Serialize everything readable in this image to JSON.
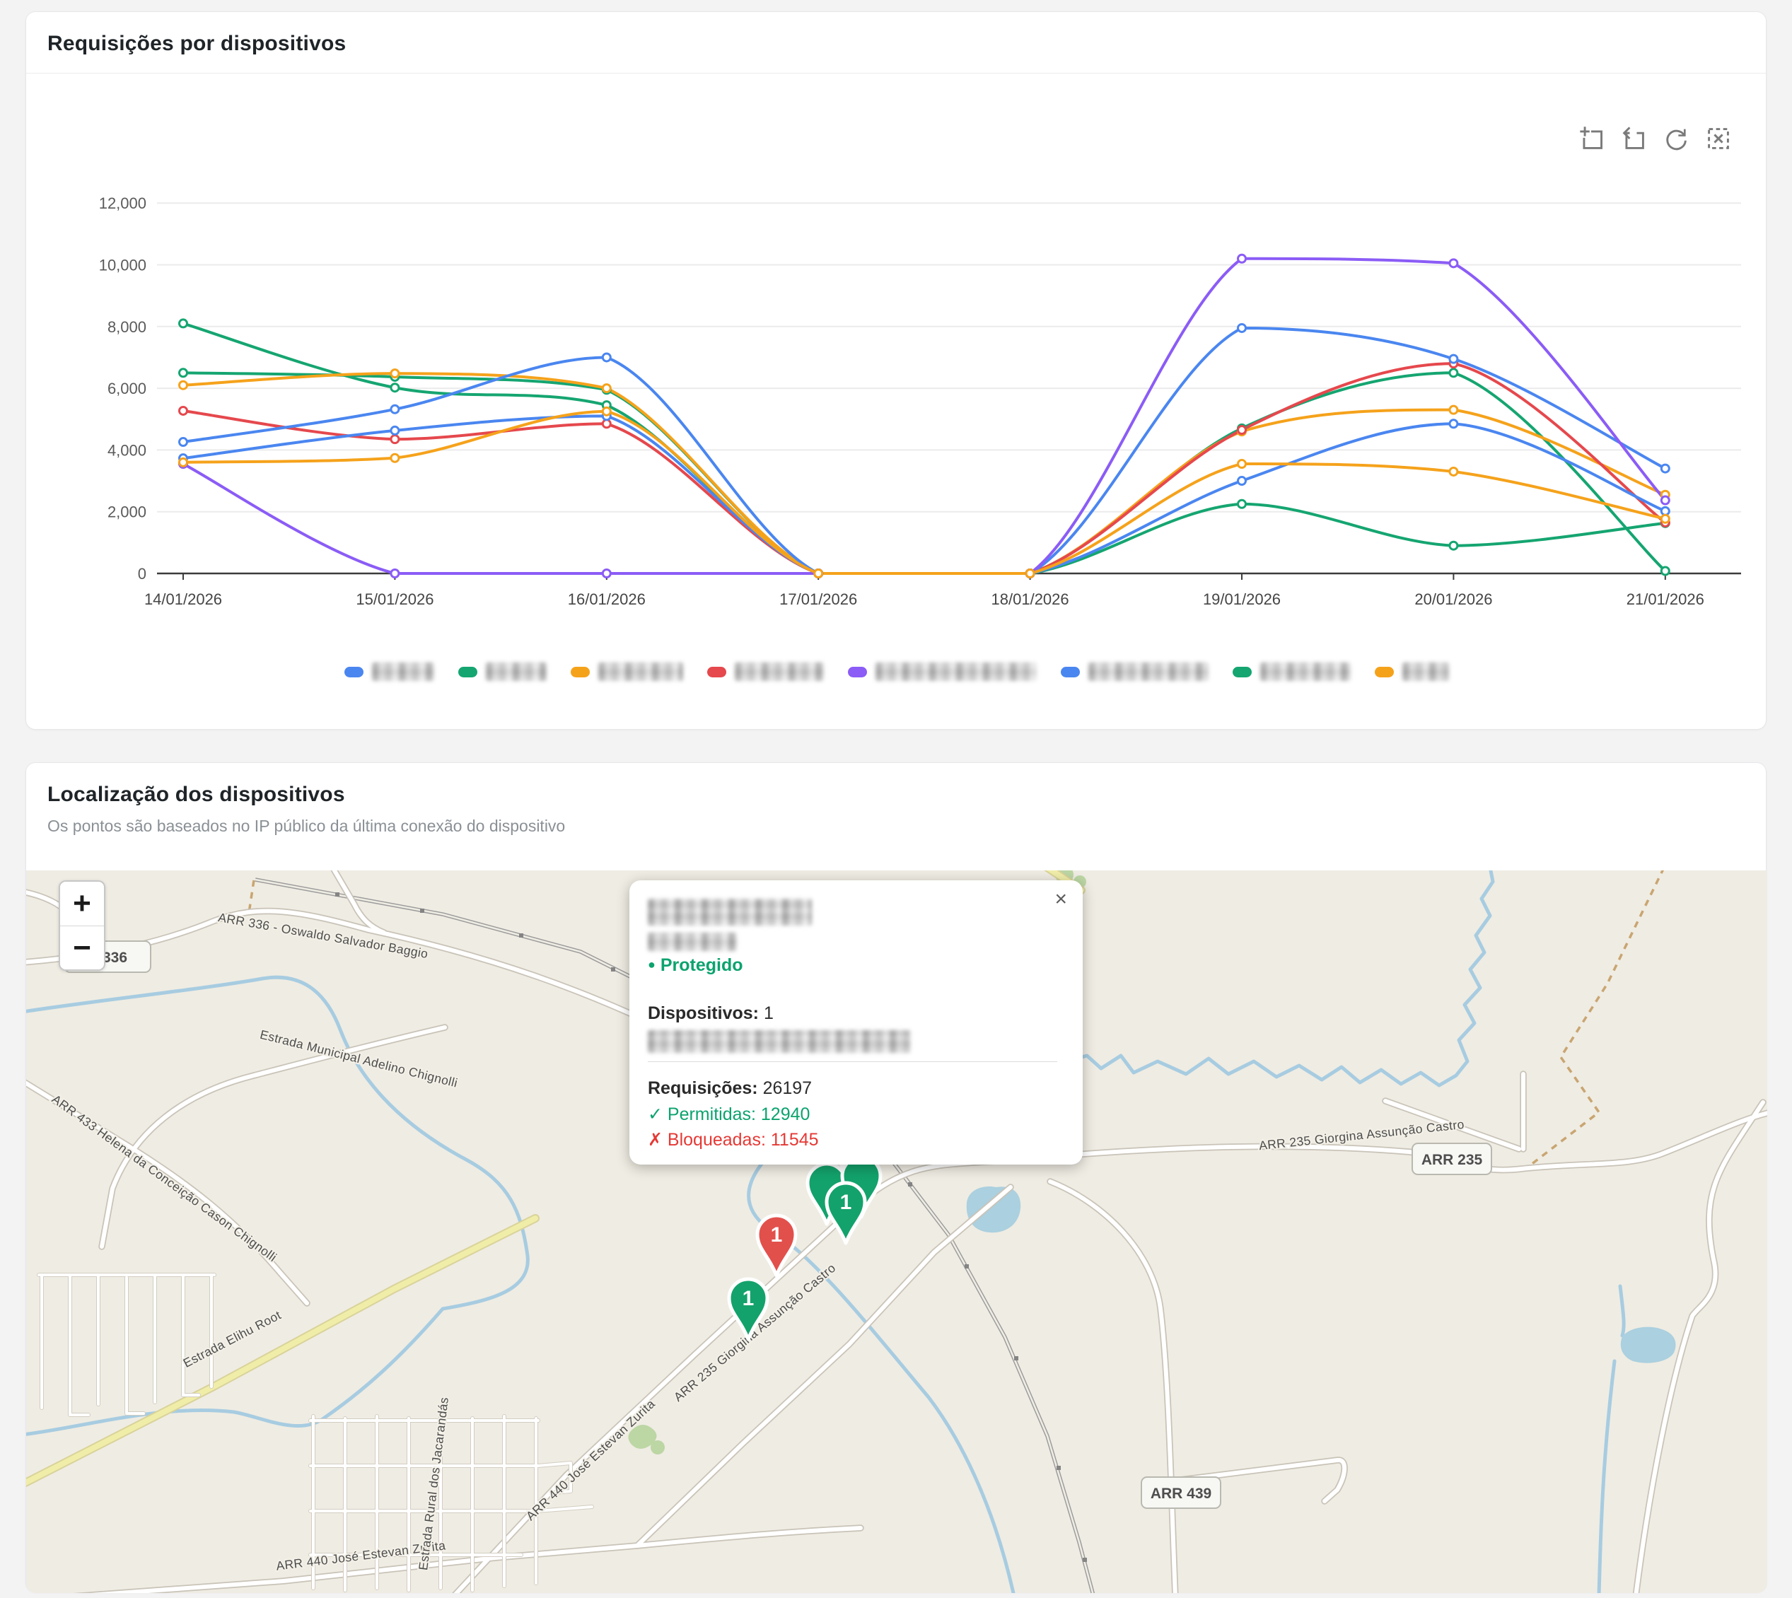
{
  "requests_card": {
    "title": "Requisições por dispositivos",
    "toolbar": [
      {
        "name": "area-zoom-icon"
      },
      {
        "name": "zoom-reset-icon"
      },
      {
        "name": "restore-icon"
      },
      {
        "name": "clear-selection-icon"
      }
    ],
    "legend": {
      "redacted": true,
      "items": [
        {
          "color": "#4a86f0",
          "name_redacted_width": 88
        },
        {
          "color": "#15a571",
          "name_redacted_width": 86
        },
        {
          "color": "#f5a21b",
          "name_redacted_width": 120
        },
        {
          "color": "#e5484d",
          "name_redacted_width": 126
        },
        {
          "color": "#8b5cf6",
          "name_redacted_width": 228
        },
        {
          "color": "#4a86f0",
          "name_redacted_width": 170
        },
        {
          "color": "#15a571",
          "name_redacted_width": 128
        },
        {
          "color": "#f5a21b",
          "name_redacted_width": 66
        }
      ]
    }
  },
  "chart_data": {
    "type": "line",
    "title": "Requisições por dispositivos",
    "smooth": true,
    "grid": true,
    "legend_position": "bottom",
    "x": [
      "14/01/2026",
      "15/01/2026",
      "16/01/2026",
      "17/01/2026",
      "18/01/2026",
      "19/01/2026",
      "20/01/2026",
      "21/01/2026"
    ],
    "ylim": [
      0,
      12000
    ],
    "yticks": [
      "0",
      "2,000",
      "4,000",
      "6,000",
      "8,000",
      "10,000",
      "12,000"
    ],
    "series": [
      {
        "name": "dispositivo-redigido-1",
        "color": "#15a571",
        "values": [
          6500,
          6370,
          5950,
          0,
          0,
          4700,
          6500,
          80
        ]
      },
      {
        "name": "dispositivo-redigido-2",
        "color": "#15a571",
        "values": [
          8100,
          6020,
          5450,
          0,
          0,
          2250,
          900,
          1630
        ]
      },
      {
        "name": "dispositivo-redigido-3",
        "color": "#f5a21b",
        "values": [
          6100,
          6480,
          6000,
          0,
          0,
          4600,
          5300,
          2550
        ]
      },
      {
        "name": "dispositivo-redigido-4",
        "color": "#e5484d",
        "values": [
          5270,
          4350,
          4850,
          0,
          0,
          4650,
          6800,
          1650
        ]
      },
      {
        "name": "dispositivo-redigido-5",
        "color": "#4a86f0",
        "values": [
          4260,
          5320,
          7000,
          0,
          0,
          7950,
          6950,
          3400
        ]
      },
      {
        "name": "dispositivo-redigido-6",
        "color": "#4a86f0",
        "values": [
          3730,
          4630,
          5100,
          0,
          0,
          3000,
          4850,
          2020
        ]
      },
      {
        "name": "dispositivo-redigido-7",
        "color": "#8b5cf6",
        "values": [
          3550,
          0,
          0,
          0,
          0,
          10200,
          10050,
          2370
        ]
      },
      {
        "name": "dispositivo-redigido-8",
        "color": "#f5a21b",
        "values": [
          3600,
          3740,
          5250,
          0,
          0,
          3550,
          3300,
          1770
        ]
      }
    ]
  },
  "map_card": {
    "title": "Localização dos dispositivos",
    "subtitle": "Os pontos são baseados no IP público da última conexão do dispositivo",
    "zoom_in": "+",
    "zoom_out": "−",
    "popup": {
      "close": "×",
      "title_redacted": true,
      "status_bullet": "●",
      "status": "Protegido",
      "devices_label": "Dispositivos:",
      "devices_value": "1",
      "requests_label": "Requisições:",
      "requests_value": "26197",
      "allowed_icon": "✓",
      "allowed_label": "Permitidas:",
      "allowed_value": "12940",
      "blocked_icon": "✗",
      "blocked_label": "Bloqueadas:",
      "blocked_value": "11545"
    },
    "markers": {
      "cluster_front_count": "1",
      "red_count": "1",
      "solo_count": "1",
      "green_color": "#13a26b",
      "red_color": "#e2504c"
    },
    "shields": [
      {
        "text": "R 336"
      },
      {
        "text": "ARR 235"
      },
      {
        "text": "ARR 439"
      }
    ],
    "road_labels": [
      {
        "text": "ARR 336 - Oswaldo Salvador Baggio"
      },
      {
        "text": "Estrada Municipal Adelino Chignolli"
      },
      {
        "text": "ARR 433 Helena da Conceição Cason Chignolli"
      },
      {
        "text": "Estrada Elihu Root"
      },
      {
        "text": "ARR 235 Giorgina Assunção Castro"
      },
      {
        "text": "ARR 235 Giorgina Assunção Castro"
      },
      {
        "text": "ARR 440 José Estevan Zurita"
      },
      {
        "text": "ARR 440 José Estevan Zurita"
      },
      {
        "text": "Estrada Rural dos Jacarandás"
      }
    ]
  }
}
